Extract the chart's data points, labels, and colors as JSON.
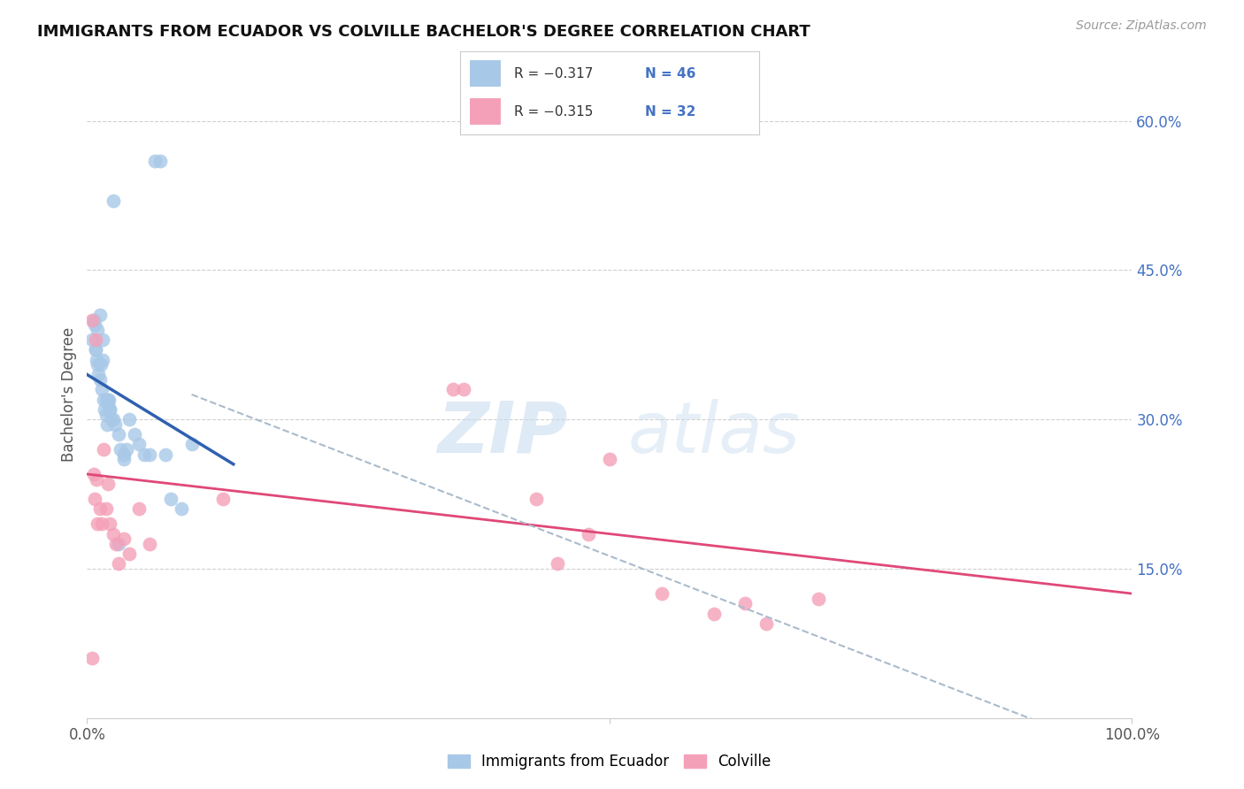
{
  "title": "IMMIGRANTS FROM ECUADOR VS COLVILLE BACHELOR'S DEGREE CORRELATION CHART",
  "source": "Source: ZipAtlas.com",
  "ylabel": "Bachelor's Degree",
  "right_yticklabels": [
    "",
    "15.0%",
    "30.0%",
    "45.0%",
    "60.0%"
  ],
  "right_ytick_vals": [
    0.0,
    0.15,
    0.3,
    0.45,
    0.6
  ],
  "blue_color": "#a8c8e8",
  "pink_color": "#f4a0b8",
  "blue_line_color": "#3060b0",
  "pink_line_color": "#e04878",
  "dashed_line_color": "#aabbcc",
  "blue_scatter_x": [
    0.005,
    0.006,
    0.007,
    0.008,
    0.009,
    0.01,
    0.011,
    0.012,
    0.013,
    0.014,
    0.015,
    0.016,
    0.017,
    0.018,
    0.019,
    0.02,
    0.021,
    0.022,
    0.023,
    0.025,
    0.027,
    0.03,
    0.032,
    0.035,
    0.038,
    0.04,
    0.045,
    0.05,
    0.055,
    0.06,
    0.065,
    0.07,
    0.075,
    0.08,
    0.09,
    0.1,
    0.01,
    0.015,
    0.018,
    0.012,
    0.02,
    0.025,
    0.03,
    0.008,
    0.022,
    0.035
  ],
  "blue_scatter_y": [
    0.38,
    0.4,
    0.395,
    0.37,
    0.36,
    0.355,
    0.345,
    0.34,
    0.355,
    0.33,
    0.36,
    0.32,
    0.31,
    0.305,
    0.295,
    0.315,
    0.32,
    0.31,
    0.3,
    0.3,
    0.295,
    0.285,
    0.27,
    0.265,
    0.27,
    0.3,
    0.285,
    0.275,
    0.265,
    0.265,
    0.56,
    0.56,
    0.265,
    0.22,
    0.21,
    0.275,
    0.39,
    0.38,
    0.32,
    0.405,
    0.32,
    0.52,
    0.175,
    0.37,
    0.31,
    0.26
  ],
  "pink_scatter_x": [
    0.005,
    0.006,
    0.007,
    0.008,
    0.009,
    0.01,
    0.012,
    0.014,
    0.016,
    0.018,
    0.02,
    0.022,
    0.025,
    0.028,
    0.03,
    0.035,
    0.04,
    0.05,
    0.06,
    0.35,
    0.36,
    0.43,
    0.45,
    0.48,
    0.5,
    0.55,
    0.6,
    0.63,
    0.65,
    0.7,
    0.13,
    0.005
  ],
  "pink_scatter_y": [
    0.4,
    0.245,
    0.22,
    0.38,
    0.24,
    0.195,
    0.21,
    0.195,
    0.27,
    0.21,
    0.235,
    0.195,
    0.185,
    0.175,
    0.155,
    0.18,
    0.165,
    0.21,
    0.175,
    0.33,
    0.33,
    0.22,
    0.155,
    0.185,
    0.26,
    0.125,
    0.105,
    0.115,
    0.095,
    0.12,
    0.22,
    0.06
  ],
  "blue_line_x": [
    0.0,
    0.14
  ],
  "blue_line_y": [
    0.345,
    0.255
  ],
  "pink_line_x": [
    0.0,
    1.0
  ],
  "pink_line_y": [
    0.245,
    0.125
  ],
  "dashed_line_x": [
    0.1,
    1.0
  ],
  "dashed_line_y": [
    0.325,
    -0.04
  ],
  "xlim": [
    0.0,
    1.0
  ],
  "ylim": [
    0.0,
    0.65
  ],
  "background_color": "#ffffff",
  "grid_color": "#d0d0d0",
  "xtick_positions": [
    0.0,
    0.5,
    1.0
  ],
  "xtick_labels": [
    "0.0%",
    "",
    "100.0%"
  ]
}
